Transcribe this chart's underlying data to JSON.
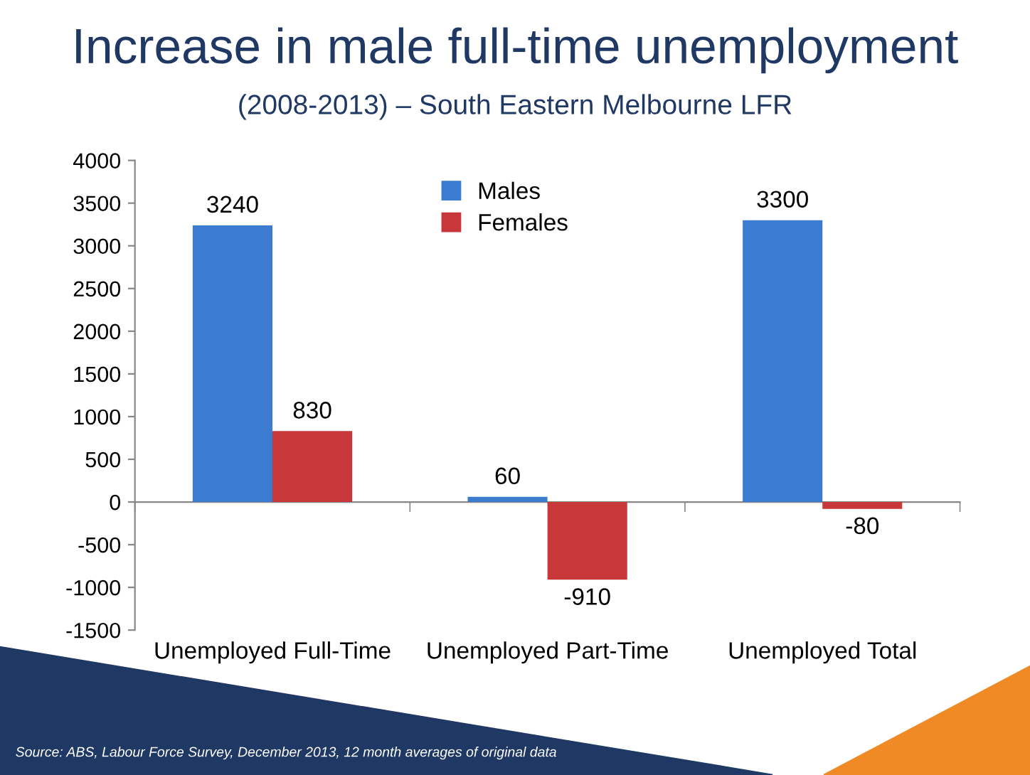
{
  "chart_data": {
    "type": "bar",
    "title": "Increase in male full-time unemployment",
    "subtitle": "(2008-2013) – South Eastern Melbourne LFR",
    "categories": [
      "Unemployed Full-Time",
      "Unemployed Part-Time",
      "Unemployed Total"
    ],
    "series": [
      {
        "name": "Males",
        "color": "#3b7bd0",
        "values": [
          3240,
          60,
          3300
        ]
      },
      {
        "name": "Females",
        "color": "#c8373a",
        "values": [
          830,
          -910,
          -80
        ]
      }
    ],
    "ylim": [
      -1500,
      4000
    ],
    "yticks": [
      -1500,
      -1000,
      -500,
      0,
      500,
      1000,
      1500,
      2000,
      2500,
      3000,
      3500,
      4000
    ],
    "legend": "top",
    "data_labels": true,
    "annotations": [
      "Source: ABS, Labour Force Survey, December 2013, 12 month averages of original data"
    ]
  }
}
